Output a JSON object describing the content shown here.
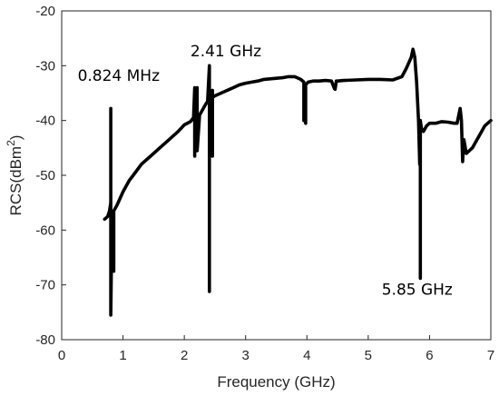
{
  "chart_data": {
    "type": "line",
    "title": "",
    "xlabel": "Frequency (GHz)",
    "ylabel_main": "RCS(dBm",
    "ylabel_sup": "2",
    "ylabel_close": ")",
    "xlim": [
      0,
      7
    ],
    "ylim": [
      -80,
      -20
    ],
    "xticks": [
      "0",
      "1",
      "2",
      "3",
      "4",
      "5",
      "6",
      "7"
    ],
    "yticks": [
      "-80",
      "-70",
      "-60",
      "-50",
      "-40",
      "-30",
      "-20"
    ],
    "grid": false,
    "line_color": "#000000",
    "annotations": [
      {
        "text": "0.824 MHz",
        "x": 0.26,
        "y": -32.8
      },
      {
        "text": "2.41 GHz",
        "x": 2.1,
        "y": -28.3
      },
      {
        "text": "5.85 GHz",
        "x": 5.22,
        "y": -71.8
      }
    ],
    "series": [
      {
        "x": [
          0.7,
          0.75,
          0.78,
          0.8,
          0.8,
          0.8,
          0.82,
          0.85,
          0.85,
          0.85,
          0.9,
          1.0,
          1.1,
          1.2,
          1.3,
          1.4,
          1.5,
          1.6,
          1.7,
          1.8,
          1.9,
          2.0,
          2.1,
          2.15,
          2.17,
          2.17,
          2.17,
          2.19,
          2.21,
          2.21,
          2.21,
          2.25,
          2.3,
          2.35,
          2.38,
          2.41,
          2.41,
          2.41,
          2.43,
          2.46,
          2.46,
          2.46,
          2.5,
          2.6,
          2.7,
          2.8,
          2.9,
          3.0,
          3.1,
          3.2,
          3.3,
          3.4,
          3.5,
          3.6,
          3.7,
          3.8,
          3.9,
          3.95,
          3.95,
          3.95,
          3.98,
          3.98,
          3.98,
          4.02,
          4.1,
          4.2,
          4.3,
          4.4,
          4.45,
          4.46,
          4.48,
          4.5,
          4.6,
          4.8,
          5.0,
          5.2,
          5.4,
          5.55,
          5.62,
          5.66,
          5.7,
          5.73,
          5.76,
          5.79,
          5.82,
          5.84,
          5.85,
          5.85,
          5.85,
          5.87,
          5.9,
          5.95,
          6.0,
          6.1,
          6.2,
          6.3,
          6.4,
          6.45,
          6.5,
          6.52,
          6.54,
          6.56,
          6.6,
          6.7,
          6.8,
          6.9,
          7.0
        ],
        "y": [
          -58,
          -57.5,
          -56.5,
          -55,
          -37.8,
          -75.5,
          -58.5,
          -57.5,
          -67.5,
          -56.5,
          -55.5,
          -53,
          -51,
          -49.5,
          -48,
          -47,
          -46,
          -45,
          -44,
          -43,
          -42,
          -40.8,
          -40.2,
          -39.5,
          -34,
          -46.5,
          -38.5,
          -38,
          -37.5,
          -34,
          -45.5,
          -39,
          -38,
          -37,
          -36.5,
          -30,
          -71.2,
          -35.5,
          -36.2,
          -34.5,
          -46.5,
          -35.8,
          -35.5,
          -35,
          -34.5,
          -34,
          -33.5,
          -33.2,
          -33,
          -32.8,
          -32.5,
          -32.4,
          -32.3,
          -32.2,
          -32,
          -32,
          -32.5,
          -33,
          -40,
          -34.5,
          -33.5,
          -40.5,
          -33.5,
          -33,
          -32.8,
          -32.8,
          -32.7,
          -32.8,
          -34.2,
          -34.3,
          -32.8,
          -32.8,
          -32.7,
          -32.6,
          -32.5,
          -32.5,
          -32.6,
          -32,
          -30.5,
          -29.5,
          -28.5,
          -27,
          -28.5,
          -33,
          -40,
          -48,
          -40,
          -68.8,
          -40,
          -41.5,
          -42,
          -41,
          -40.5,
          -40.5,
          -40.2,
          -40.3,
          -40.5,
          -40.5,
          -37.8,
          -40,
          -47.5,
          -43.5,
          -46,
          -45,
          -43,
          -41,
          -40
        ]
      }
    ]
  }
}
